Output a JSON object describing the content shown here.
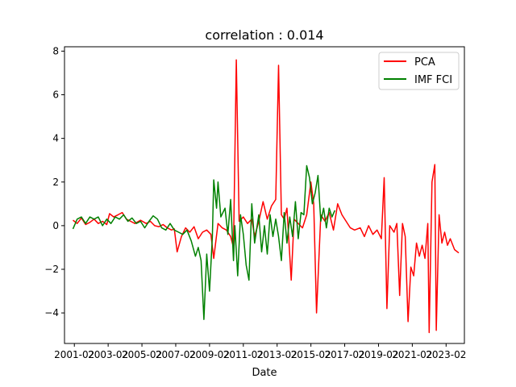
{
  "chart_data": {
    "type": "line",
    "title": "correlation : 0.014",
    "xlabel": "Date",
    "ylabel": "",
    "xlim": [
      "2000-07-01",
      "2024-03-01"
    ],
    "ylim": [
      -5.4,
      8.2
    ],
    "xticks": [
      "2001-02",
      "2003-02",
      "2005-02",
      "2007-02",
      "2009-02",
      "2011-02",
      "2013-02",
      "2015-02",
      "2017-02",
      "2019-02",
      "2021-02",
      "2023-02"
    ],
    "yticks": [
      -4,
      -2,
      0,
      2,
      4,
      6,
      8
    ],
    "grid": false,
    "legend_position": "top-right",
    "series": [
      {
        "name": "PCA",
        "color": "#ff0000",
        "points": [
          [
            "2001-01",
            0.25
          ],
          [
            "2001-04",
            0.1
          ],
          [
            "2001-07",
            0.35
          ],
          [
            "2001-10",
            0.05
          ],
          [
            "2002-01",
            0.15
          ],
          [
            "2002-04",
            0.3
          ],
          [
            "2002-07",
            0.1
          ],
          [
            "2002-10",
            0.2
          ],
          [
            "2003-01",
            0.05
          ],
          [
            "2003-03",
            0.55
          ],
          [
            "2003-06",
            0.4
          ],
          [
            "2003-09",
            0.5
          ],
          [
            "2003-12",
            0.6
          ],
          [
            "2004-03",
            0.3
          ],
          [
            "2004-06",
            0.2
          ],
          [
            "2004-09",
            0.1
          ],
          [
            "2005-01",
            0.25
          ],
          [
            "2005-05",
            0.1
          ],
          [
            "2005-08",
            0.2
          ],
          [
            "2005-11",
            0.0
          ],
          [
            "2006-02",
            -0.05
          ],
          [
            "2006-05",
            0.05
          ],
          [
            "2006-08",
            -0.1
          ],
          [
            "2006-11",
            -0.2
          ],
          [
            "2007-01",
            -0.15
          ],
          [
            "2007-03",
            -1.2
          ],
          [
            "2007-06",
            -0.5
          ],
          [
            "2007-09",
            -0.1
          ],
          [
            "2007-12",
            -0.3
          ],
          [
            "2008-03",
            -0.05
          ],
          [
            "2008-06",
            -0.6
          ],
          [
            "2008-09",
            -0.3
          ],
          [
            "2008-12",
            -0.2
          ],
          [
            "2009-03",
            -0.4
          ],
          [
            "2009-05",
            -1.5
          ],
          [
            "2009-08",
            0.1
          ],
          [
            "2009-11",
            -0.1
          ],
          [
            "2010-02",
            -0.2
          ],
          [
            "2010-05",
            -0.5
          ],
          [
            "2010-07",
            -1.0
          ],
          [
            "2010-09",
            7.6
          ],
          [
            "2010-11",
            0.2
          ],
          [
            "2011-02",
            0.4
          ],
          [
            "2011-05",
            0.1
          ],
          [
            "2011-08",
            0.3
          ],
          [
            "2011-10",
            -0.5
          ],
          [
            "2012-01",
            0.2
          ],
          [
            "2012-04",
            1.1
          ],
          [
            "2012-07",
            0.3
          ],
          [
            "2012-10",
            0.9
          ],
          [
            "2013-01",
            1.2
          ],
          [
            "2013-03",
            7.35
          ],
          [
            "2013-05",
            0.5
          ],
          [
            "2013-07",
            0.3
          ],
          [
            "2013-09",
            0.8
          ],
          [
            "2013-12",
            -2.5
          ],
          [
            "2014-02",
            0.3
          ],
          [
            "2014-05",
            0.1
          ],
          [
            "2014-08",
            -0.1
          ],
          [
            "2014-11",
            0.5
          ],
          [
            "2015-02",
            2.0
          ],
          [
            "2015-04",
            1.0
          ],
          [
            "2015-06",
            -4.0
          ],
          [
            "2015-09",
            0.5
          ],
          [
            "2015-12",
            0.2
          ],
          [
            "2016-03",
            0.6
          ],
          [
            "2016-06",
            -0.2
          ],
          [
            "2016-09",
            1.0
          ],
          [
            "2016-12",
            0.5
          ],
          [
            "2017-03",
            0.2
          ],
          [
            "2017-06",
            -0.1
          ],
          [
            "2017-09",
            -0.2
          ],
          [
            "2018-01",
            -0.1
          ],
          [
            "2018-04",
            -0.5
          ],
          [
            "2018-07",
            0.0
          ],
          [
            "2018-10",
            -0.4
          ],
          [
            "2019-01",
            -0.2
          ],
          [
            "2019-04",
            -0.6
          ],
          [
            "2019-06",
            2.2
          ],
          [
            "2019-08",
            -3.8
          ],
          [
            "2019-10",
            0.0
          ],
          [
            "2020-01",
            -0.3
          ],
          [
            "2020-03",
            0.1
          ],
          [
            "2020-05",
            -3.2
          ],
          [
            "2020-07",
            0.1
          ],
          [
            "2020-09",
            -0.5
          ],
          [
            "2020-11",
            -4.4
          ],
          [
            "2021-01",
            -1.9
          ],
          [
            "2021-03",
            -2.3
          ],
          [
            "2021-05",
            -0.8
          ],
          [
            "2021-07",
            -1.4
          ],
          [
            "2021-09",
            -0.9
          ],
          [
            "2021-11",
            -1.5
          ],
          [
            "2022-01",
            0.1
          ],
          [
            "2022-02",
            -4.9
          ],
          [
            "2022-04",
            2.0
          ],
          [
            "2022-06",
            2.8
          ],
          [
            "2022-07",
            -4.8
          ],
          [
            "2022-09",
            0.5
          ],
          [
            "2022-11",
            -0.8
          ],
          [
            "2023-01",
            -0.3
          ],
          [
            "2023-03",
            -0.9
          ],
          [
            "2023-05",
            -0.6
          ],
          [
            "2023-08",
            -1.1
          ],
          [
            "2023-11",
            -1.25
          ]
        ]
      },
      {
        "name": "IMF FCI",
        "color": "#008000",
        "points": [
          [
            "2001-01",
            -0.15
          ],
          [
            "2001-04",
            0.3
          ],
          [
            "2001-07",
            0.4
          ],
          [
            "2001-10",
            0.1
          ],
          [
            "2002-01",
            0.4
          ],
          [
            "2002-04",
            0.3
          ],
          [
            "2002-07",
            0.4
          ],
          [
            "2002-10",
            0.0
          ],
          [
            "2003-01",
            0.3
          ],
          [
            "2003-04",
            0.1
          ],
          [
            "2003-07",
            0.4
          ],
          [
            "2003-10",
            0.3
          ],
          [
            "2004-01",
            0.5
          ],
          [
            "2004-04",
            0.2
          ],
          [
            "2004-07",
            0.35
          ],
          [
            "2004-10",
            0.1
          ],
          [
            "2005-01",
            0.2
          ],
          [
            "2005-04",
            -0.1
          ],
          [
            "2005-07",
            0.2
          ],
          [
            "2005-10",
            0.45
          ],
          [
            "2006-01",
            0.3
          ],
          [
            "2006-04",
            -0.1
          ],
          [
            "2006-07",
            -0.2
          ],
          [
            "2006-10",
            0.1
          ],
          [
            "2007-01",
            -0.2
          ],
          [
            "2007-04",
            -0.3
          ],
          [
            "2007-07",
            -0.4
          ],
          [
            "2007-10",
            -0.2
          ],
          [
            "2008-01",
            -0.7
          ],
          [
            "2008-04",
            -1.4
          ],
          [
            "2008-06",
            -1.0
          ],
          [
            "2008-08",
            -1.6
          ],
          [
            "2008-10",
            -4.3
          ],
          [
            "2008-12",
            -1.3
          ],
          [
            "2009-02",
            -3.0
          ],
          [
            "2009-04",
            -0.5
          ],
          [
            "2009-05",
            2.1
          ],
          [
            "2009-07",
            0.8
          ],
          [
            "2009-08",
            2.0
          ],
          [
            "2009-10",
            0.4
          ],
          [
            "2010-01",
            0.8
          ],
          [
            "2010-03",
            -0.4
          ],
          [
            "2010-05",
            1.2
          ],
          [
            "2010-07",
            -1.6
          ],
          [
            "2010-08",
            0.0
          ],
          [
            "2010-10",
            -2.3
          ],
          [
            "2010-12",
            0.5
          ],
          [
            "2011-02",
            -0.4
          ],
          [
            "2011-04",
            -1.8
          ],
          [
            "2011-06",
            -2.5
          ],
          [
            "2011-08",
            1.0
          ],
          [
            "2011-10",
            -0.8
          ],
          [
            "2012-01",
            0.5
          ],
          [
            "2012-03",
            -1.2
          ],
          [
            "2012-05",
            0.0
          ],
          [
            "2012-07",
            -1.3
          ],
          [
            "2012-09",
            0.5
          ],
          [
            "2012-11",
            -0.5
          ],
          [
            "2013-01",
            0.3
          ],
          [
            "2013-03",
            -0.5
          ],
          [
            "2013-05",
            -1.6
          ],
          [
            "2013-07",
            0.6
          ],
          [
            "2013-09",
            -0.8
          ],
          [
            "2013-11",
            0.4
          ],
          [
            "2014-01",
            -0.5
          ],
          [
            "2014-03",
            1.1
          ],
          [
            "2014-05",
            -0.6
          ],
          [
            "2014-07",
            0.6
          ],
          [
            "2014-09",
            0.5
          ],
          [
            "2014-11",
            2.75
          ],
          [
            "2015-01",
            2.2
          ],
          [
            "2015-03",
            1.0
          ],
          [
            "2015-05",
            1.5
          ],
          [
            "2015-07",
            2.3
          ],
          [
            "2015-09",
            0.2
          ],
          [
            "2015-11",
            0.8
          ],
          [
            "2016-01",
            -0.1
          ],
          [
            "2016-03",
            0.8
          ],
          [
            "2016-05",
            0.4
          ],
          [
            "2016-07",
            0.7
          ]
        ]
      }
    ]
  }
}
